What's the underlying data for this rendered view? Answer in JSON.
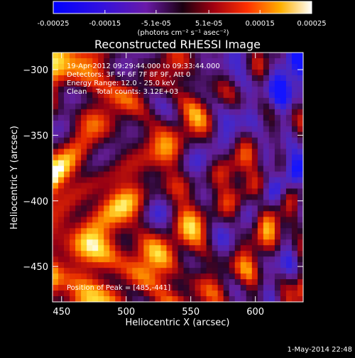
{
  "colorbar": {
    "ticks": [
      "-0.00025",
      "-0.00015",
      "-5.1e-05",
      "5.1e-05",
      "0.00015",
      "0.00025"
    ],
    "tick_values": [
      -0.00025,
      -0.00015,
      -5.1e-05,
      5.1e-05,
      0.00015,
      0.00025
    ],
    "range": [
      -0.00025,
      0.00025
    ],
    "units_label": "(photons cm⁻² s⁻¹ asec⁻²)"
  },
  "chart_data": {
    "type": "heatmap",
    "title": "Reconstructed RHESSI Image",
    "xlabel": "Heliocentric X (arcsec)",
    "ylabel": "Heliocentric Y (arcsec)",
    "xlim": [
      443,
      637
    ],
    "ylim": [
      -477,
      -287
    ],
    "x_ticks": [
      450,
      500,
      550,
      600
    ],
    "y_ticks": [
      -300,
      -350,
      -400,
      -450
    ],
    "x_tick_labels": [
      "450",
      "500",
      "550",
      "600"
    ],
    "y_tick_labels": [
      "−300",
      "−350",
      "−400",
      "−450"
    ],
    "annotations": [
      "19-Apr-2012 09:29:44.000 to 09:33:44.000",
      "Detectors: 3F 5F 6F 7F 8F 9F, Att 0",
      "Energy Range: 12.0 - 25.0 keV",
      "Clean    Total counts: 3.12E+03"
    ],
    "peak_text": "Position of Peak = [485,-441]",
    "peak": [
      485,
      -441
    ],
    "colormap": "rhessi: blue-purple (negative) through black to red-yellow-white (positive)"
  },
  "footer": {
    "date": "1-May-2014 22:48"
  }
}
